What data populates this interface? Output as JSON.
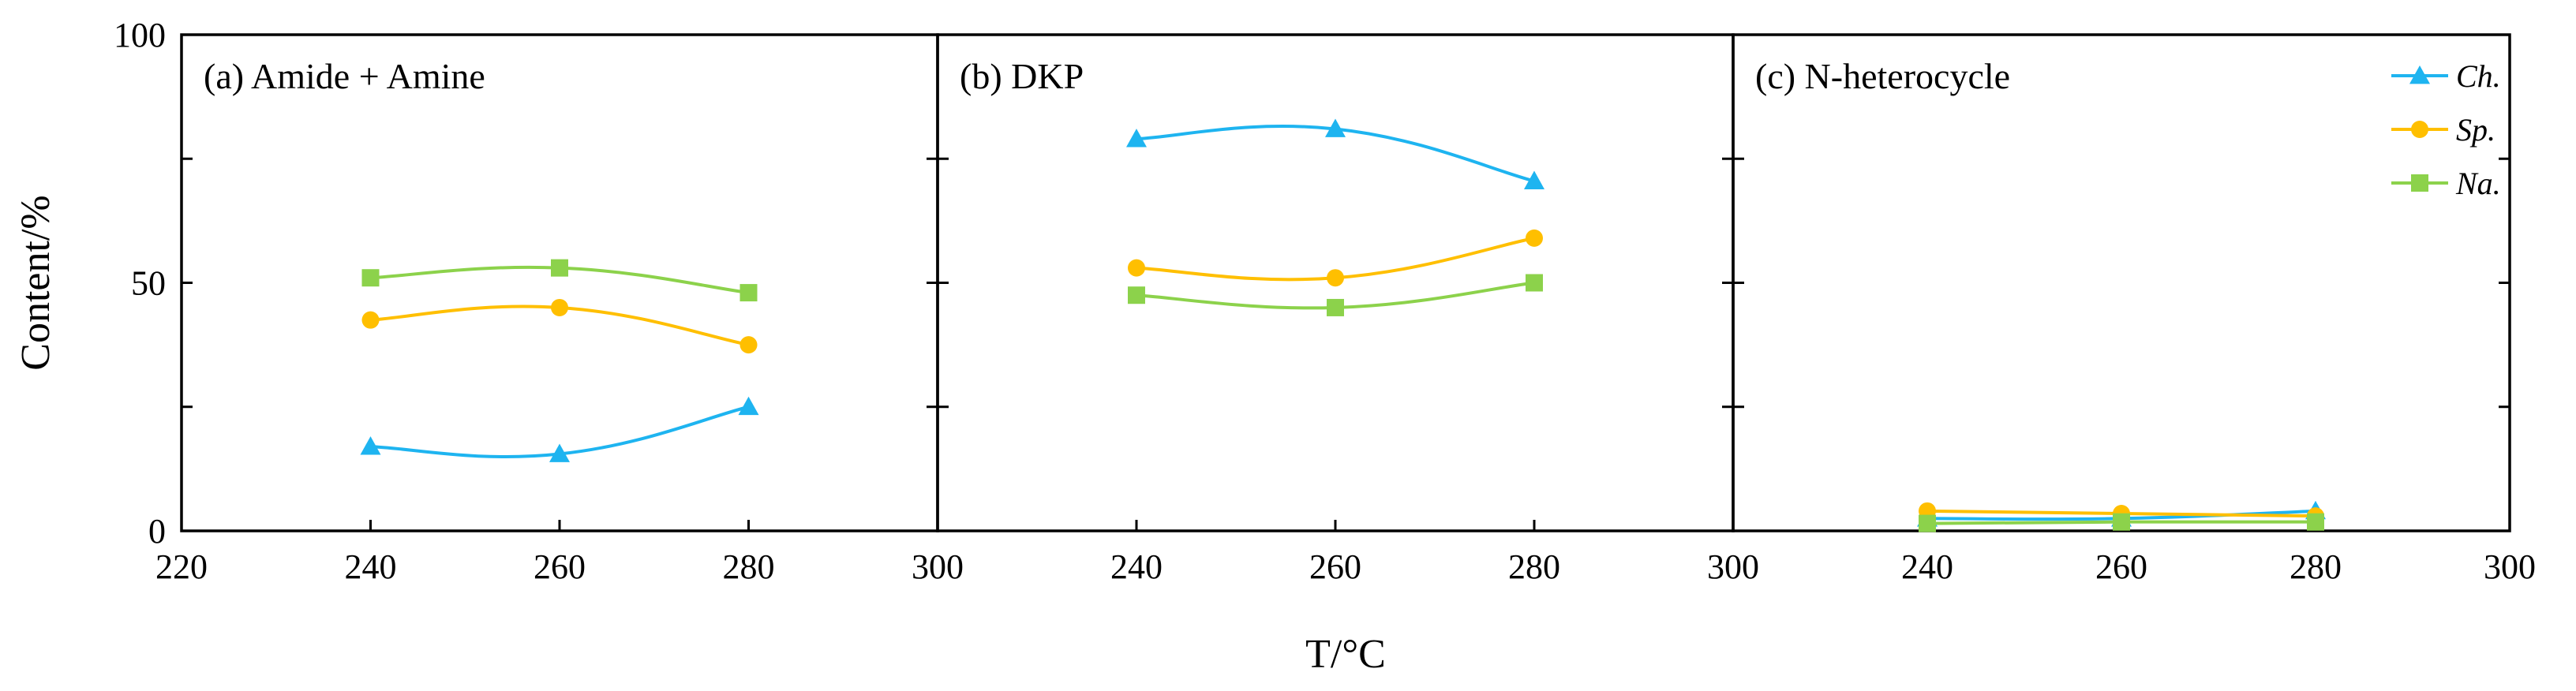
{
  "chart_data": {
    "type": "line",
    "ylabel": "Content/%",
    "xlabel": "T/°C",
    "ylim": [
      0,
      100
    ],
    "yticks": [
      0,
      50,
      100
    ],
    "legend_position": "top-right",
    "series_colors": {
      "Ch.": "#1EB4F0",
      "Sp.": "#FFBF00",
      "Na.": "#8CD24B"
    },
    "legend": [
      "Ch.",
      "Sp.",
      "Na."
    ],
    "panels": [
      {
        "title": "(a) Amide + Amine",
        "xlim": [
          220,
          300
        ],
        "xticks": [
          220,
          240,
          260,
          280,
          300
        ],
        "x": [
          240,
          260,
          280
        ],
        "series": [
          {
            "name": "Ch.",
            "values": [
              17,
              15.5,
              25
            ]
          },
          {
            "name": "Sp.",
            "values": [
              42.5,
              45,
              37.5
            ]
          },
          {
            "name": "Na.",
            "values": [
              51,
              53,
              48
            ]
          }
        ]
      },
      {
        "title": "(b) DKP",
        "xlim": [
          220,
          300
        ],
        "xticks": [
          240,
          260,
          280,
          300
        ],
        "x": [
          240,
          260,
          280
        ],
        "series": [
          {
            "name": "Ch.",
            "values": [
              79,
              81,
              70.5
            ]
          },
          {
            "name": "Sp.",
            "values": [
              53,
              51,
              59
            ]
          },
          {
            "name": "Na.",
            "values": [
              47.5,
              45,
              50
            ]
          }
        ]
      },
      {
        "title": "(c) N-heterocycle",
        "xlim": [
          220,
          300
        ],
        "xticks": [
          240,
          260,
          280,
          300
        ],
        "x": [
          240,
          260,
          280
        ],
        "series": [
          {
            "name": "Ch.",
            "values": [
              2.5,
              2.5,
              4
            ]
          },
          {
            "name": "Sp.",
            "values": [
              4,
              3.5,
              3
            ]
          },
          {
            "name": "Na.",
            "values": [
              1.5,
              1.8,
              1.8
            ]
          }
        ]
      }
    ]
  }
}
